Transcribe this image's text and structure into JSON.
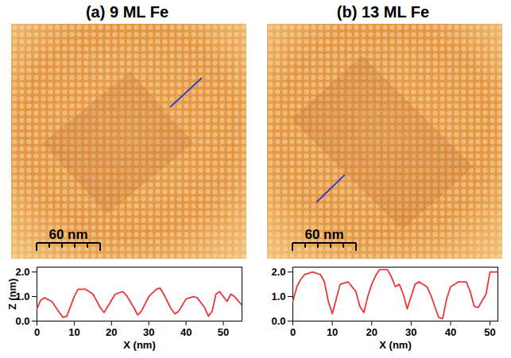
{
  "chart_data": [
    {
      "type": "line",
      "title": "(a) 9 ML Fe",
      "annotations": [
        "60 nm"
      ],
      "x_label": "X (nm)",
      "y_label": "Z (nm)",
      "x": [
        0,
        1,
        2,
        4,
        6,
        7,
        8,
        10,
        11,
        13,
        15,
        17,
        18,
        19,
        21,
        23,
        24,
        26,
        27,
        28,
        30,
        32,
        33,
        34,
        36,
        37,
        38,
        40,
        42,
        43,
        45,
        46,
        47,
        48,
        49,
        51,
        52,
        53,
        55
      ],
      "values": [
        0.5,
        0.85,
        0.95,
        0.8,
        0.35,
        0.15,
        0.2,
        1.0,
        1.3,
        1.3,
        1.1,
        0.55,
        0.35,
        0.6,
        1.1,
        1.2,
        1.05,
        0.55,
        0.25,
        0.4,
        1.0,
        1.3,
        1.35,
        1.1,
        0.5,
        0.3,
        0.4,
        0.9,
        1.0,
        0.95,
        0.55,
        0.2,
        0.4,
        1.1,
        1.2,
        0.8,
        1.1,
        1.0,
        0.65
      ],
      "color": "#e8383d",
      "xlim": [
        0,
        55
      ],
      "xticks": [
        0,
        10,
        20,
        30,
        40,
        50
      ],
      "ylim": [
        0,
        2.2
      ],
      "yticks": [
        0,
        1,
        2
      ]
    },
    {
      "type": "line",
      "title": "(b) 13 ML Fe",
      "annotations": [
        "60 nm"
      ],
      "x_label": "X (nm)",
      "x": [
        0,
        1,
        2,
        3,
        5,
        7,
        8,
        9,
        10,
        11,
        12,
        13,
        14,
        16,
        17,
        18,
        19,
        20,
        21,
        22,
        24,
        25,
        26,
        27,
        28,
        29,
        30,
        31,
        32,
        34,
        35,
        36,
        37,
        38,
        39,
        40,
        42,
        44,
        45,
        46,
        47,
        49,
        50,
        52
      ],
      "values": [
        0.8,
        1.4,
        1.7,
        1.9,
        2.0,
        1.9,
        1.6,
        0.8,
        0.3,
        0.9,
        1.5,
        1.55,
        1.6,
        1.2,
        0.6,
        0.35,
        1.0,
        1.5,
        1.85,
        2.1,
        2.1,
        1.8,
        1.4,
        1.5,
        1.1,
        0.5,
        1.0,
        1.5,
        1.6,
        1.4,
        1.05,
        0.6,
        0.15,
        0.1,
        0.9,
        1.4,
        1.6,
        1.6,
        1.2,
        0.6,
        0.55,
        1.1,
        2.0,
        2.0
      ],
      "color": "#e8383d",
      "xlim": [
        0,
        52
      ],
      "xticks": [
        0,
        10,
        20,
        30,
        40,
        50
      ],
      "ylim": [
        0,
        2.2
      ],
      "yticks": [
        0,
        1,
        2
      ]
    }
  ]
}
